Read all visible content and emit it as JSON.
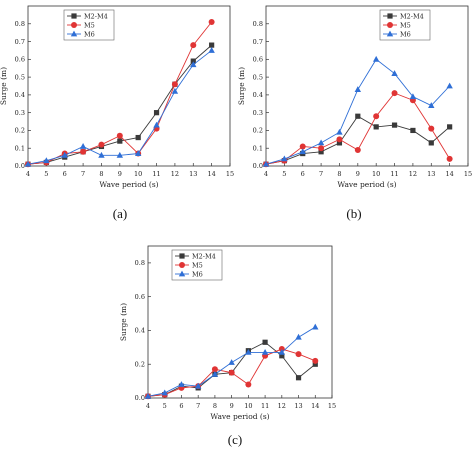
{
  "panel_labels": [
    "(a)",
    "(b)",
    "(c)"
  ],
  "chart_data": [
    {
      "type": "line",
      "panel": "(a)",
      "xlabel": "Wave period (s)",
      "ylabel": "Surge (m)",
      "xlim": [
        4,
        15
      ],
      "ylim": [
        0,
        0.9
      ],
      "xticks": [
        "4",
        "5",
        "6",
        "7",
        "8",
        "9",
        "10",
        "11",
        "12",
        "13",
        "14",
        "15"
      ],
      "yticks": [
        "0.0",
        "0.1",
        "0.2",
        "0.3",
        "0.4",
        "0.5",
        "0.6",
        "0.7",
        "0.8"
      ],
      "legend_position": "top-left",
      "x": [
        4,
        5,
        6,
        7,
        8,
        9,
        10,
        11,
        12,
        13,
        14
      ],
      "series": [
        {
          "name": "M2-M4",
          "color": "#3a3a3a",
          "marker": "square",
          "values": [
            0.01,
            0.02,
            0.05,
            0.08,
            0.11,
            0.14,
            0.16,
            0.3,
            0.46,
            0.59,
            0.68
          ]
        },
        {
          "name": "M5",
          "color": "#e03434",
          "marker": "circle",
          "values": [
            0.01,
            0.02,
            0.07,
            0.08,
            0.12,
            0.17,
            0.07,
            0.21,
            0.46,
            0.68,
            0.81
          ]
        },
        {
          "name": "M6",
          "color": "#2f6fd6",
          "marker": "triangle",
          "values": [
            0.01,
            0.03,
            0.06,
            0.11,
            0.06,
            0.06,
            0.07,
            0.23,
            0.42,
            0.57,
            0.65
          ]
        }
      ]
    },
    {
      "type": "line",
      "panel": "(b)",
      "xlabel": "Wave period (s)",
      "ylabel": "Surge (m)",
      "xlim": [
        4,
        15
      ],
      "ylim": [
        0,
        0.9
      ],
      "xticks": [
        "4",
        "5",
        "6",
        "7",
        "8",
        "9",
        "10",
        "11",
        "12",
        "13",
        "14",
        "15"
      ],
      "yticks": [
        "0.0",
        "0.1",
        "0.2",
        "0.3",
        "0.4",
        "0.5",
        "0.6",
        "0.7",
        "0.8"
      ],
      "legend_position": "top-right",
      "x": [
        4,
        5,
        6,
        7,
        8,
        9,
        10,
        11,
        12,
        13,
        14
      ],
      "series": [
        {
          "name": "M2-M4",
          "color": "#3a3a3a",
          "marker": "square",
          "values": [
            0.01,
            0.03,
            0.07,
            0.08,
            0.13,
            0.28,
            0.22,
            0.23,
            0.2,
            0.13,
            0.22
          ]
        },
        {
          "name": "M5",
          "color": "#e03434",
          "marker": "circle",
          "values": [
            0.01,
            0.03,
            0.11,
            0.1,
            0.15,
            0.09,
            0.28,
            0.41,
            0.37,
            0.21,
            0.04
          ]
        },
        {
          "name": "M6",
          "color": "#2f6fd6",
          "marker": "triangle",
          "values": [
            0.01,
            0.04,
            0.08,
            0.13,
            0.19,
            0.43,
            0.6,
            0.52,
            0.39,
            0.34,
            0.45
          ]
        }
      ]
    },
    {
      "type": "line",
      "panel": "(c)",
      "xlabel": "Wave period (s)",
      "ylabel": "Surge (m)",
      "xlim": [
        4,
        15
      ],
      "ylim": [
        0,
        0.9
      ],
      "xticks": [
        "4",
        "5",
        "6",
        "7",
        "8",
        "9",
        "10",
        "11",
        "12",
        "13",
        "14",
        "15"
      ],
      "yticks": [
        "0.0",
        "0.2",
        "0.4",
        "0.6",
        "0.8"
      ],
      "legend_position": "top-left",
      "x": [
        4,
        5,
        6,
        7,
        8,
        9,
        10,
        11,
        12,
        13,
        14
      ],
      "series": [
        {
          "name": "M2-M4",
          "color": "#3a3a3a",
          "marker": "square",
          "values": [
            0.01,
            0.02,
            0.07,
            0.06,
            0.14,
            0.15,
            0.28,
            0.33,
            0.25,
            0.12,
            0.2
          ]
        },
        {
          "name": "M5",
          "color": "#e03434",
          "marker": "circle",
          "values": [
            0.01,
            0.02,
            0.06,
            0.07,
            0.17,
            0.15,
            0.08,
            0.25,
            0.29,
            0.26,
            0.22
          ]
        },
        {
          "name": "M6",
          "color": "#2f6fd6",
          "marker": "triangle",
          "values": [
            0.01,
            0.03,
            0.08,
            0.07,
            0.14,
            0.21,
            0.27,
            0.27,
            0.27,
            0.36,
            0.42
          ]
        }
      ]
    }
  ]
}
